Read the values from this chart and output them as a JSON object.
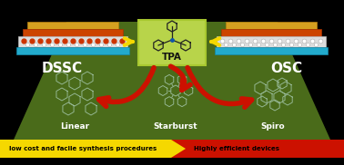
{
  "bg_color": "#000000",
  "main_bg": "#4a6b1a",
  "tpa_box_color": "#b8d44a",
  "dssc_label": "DSSC",
  "osc_label": "OSC",
  "tpa_label": "TPA",
  "linear_label": "Linear",
  "starburst_label": "Starburst",
  "spiro_label": "Spiro",
  "bottom_left_text": "low cost and facile synthesis procedures",
  "bottom_right_text": "Highly efficient devices",
  "bottom_bar_yellow": "#f5d800",
  "bottom_bar_red": "#cc1100",
  "arrow_color": "#cc1100",
  "yellow_arrow_color": "#f5d800",
  "label_color": "#ffffff",
  "bottom_text_color": "#000000"
}
